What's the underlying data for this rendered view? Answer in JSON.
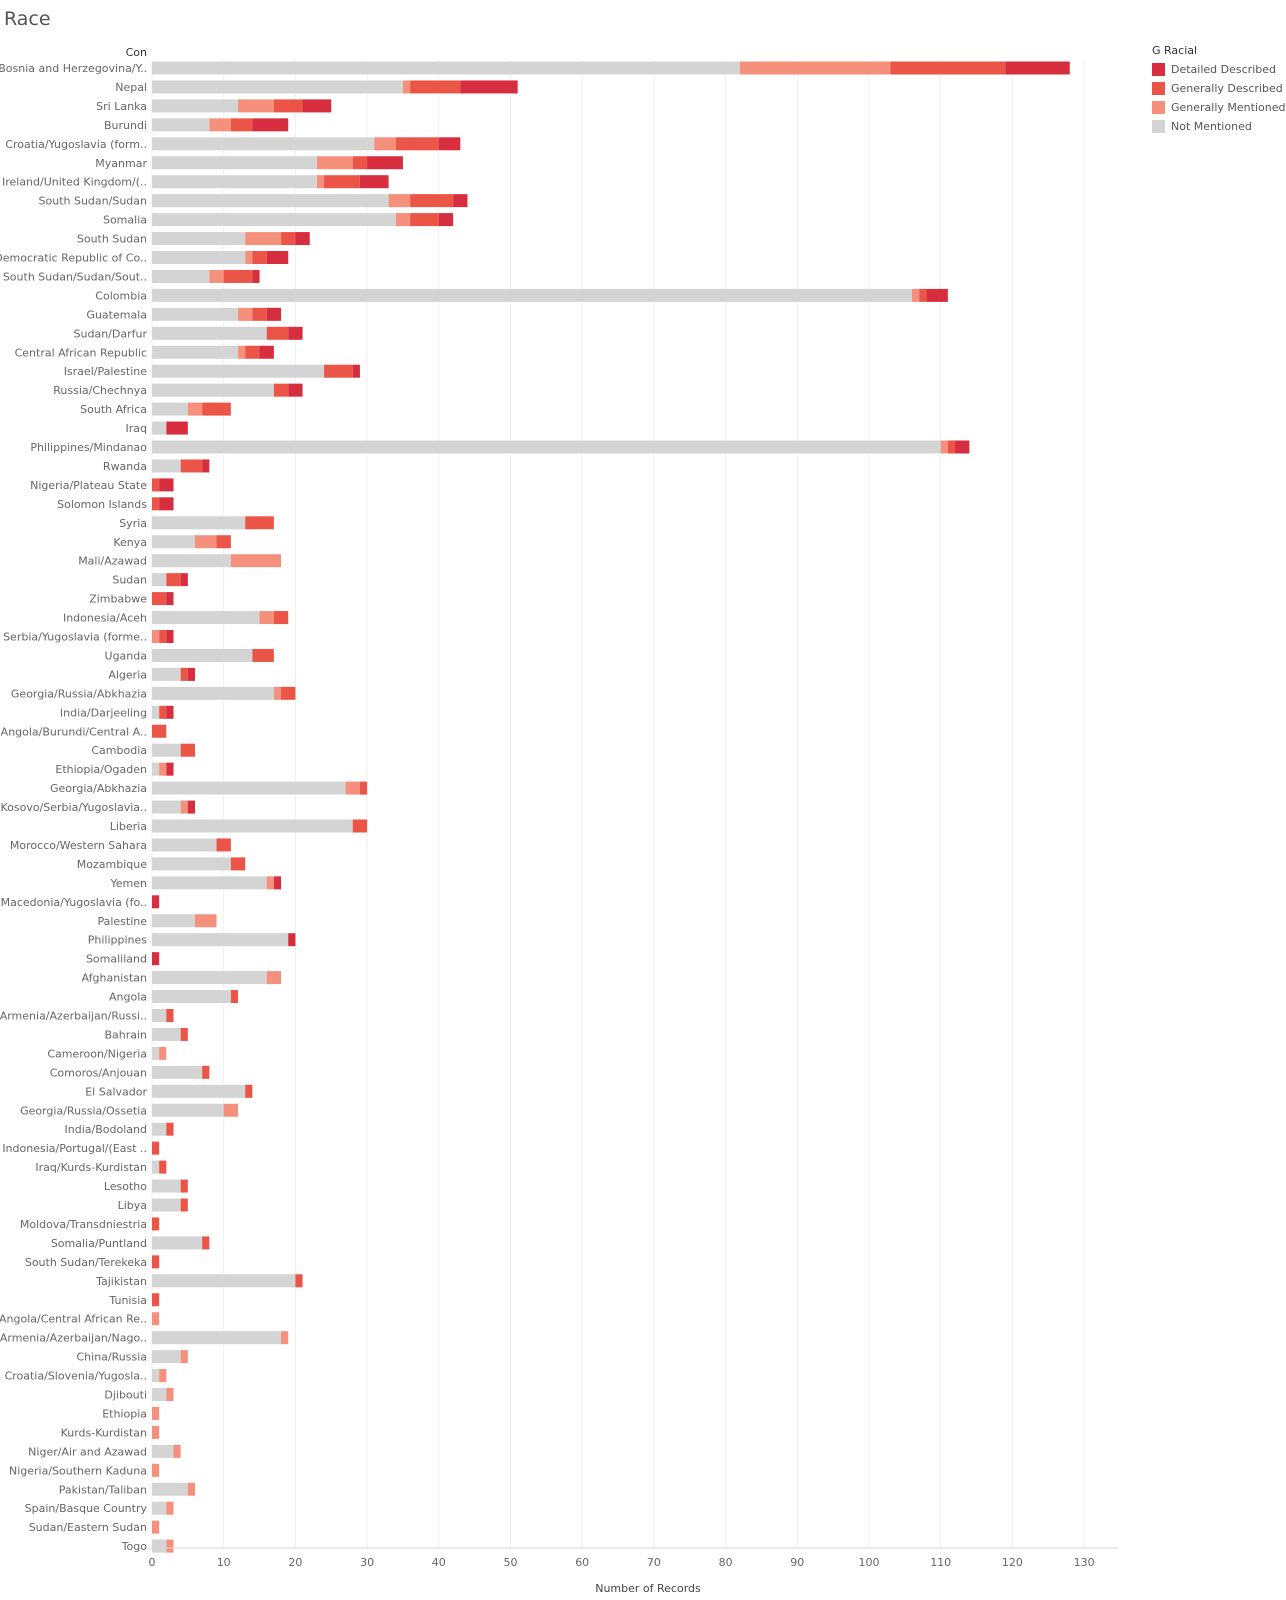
{
  "title": "Race",
  "chart_data": {
    "type": "bar",
    "orientation": "horizontal",
    "stacked": true,
    "column_header": "Con",
    "xlabel": "Number of Records",
    "xlim": [
      0,
      135
    ],
    "xticks": [
      0,
      10,
      20,
      30,
      40,
      50,
      60,
      70,
      80,
      90,
      100,
      110,
      120,
      130
    ],
    "grid": true,
    "legend": {
      "title": "G Racial",
      "placement": "top-right",
      "items": [
        {
          "name": "Detailed Described",
          "color": "#d62d3f"
        },
        {
          "name": "Generally Described",
          "color": "#ea5548"
        },
        {
          "name": "Generally Mentioned",
          "color": "#f4907b"
        },
        {
          "name": "Not Mentioned",
          "color": "#d4d4d4"
        }
      ]
    },
    "stack_order": [
      "Not Mentioned",
      "Generally Mentioned",
      "Generally Described",
      "Detailed Described"
    ],
    "categories": [
      "Bosnia and Herzegovina/Y..",
      "Nepal",
      "Sri Lanka",
      "Burundi",
      "Croatia/Yugoslavia (form..",
      "Myanmar",
      "Ireland/United Kingdom/(..",
      "South Sudan/Sudan",
      "Somalia",
      "South Sudan",
      "Democratic Republic of Co..",
      "South Sudan/Sudan/Sout..",
      "Colombia",
      "Guatemala",
      "Sudan/Darfur",
      "Central African Republic",
      "Israel/Palestine",
      "Russia/Chechnya",
      "South Africa",
      "Iraq",
      "Philippines/Mindanao",
      "Rwanda",
      "Nigeria/Plateau State",
      "Solomon Islands",
      "Syria",
      "Kenya",
      "Mali/Azawad",
      "Sudan",
      "Zimbabwe",
      "Indonesia/Aceh",
      "Serbia/Yugoslavia (forme..",
      "Uganda",
      "Algeria",
      "Georgia/Russia/Abkhazia",
      "India/Darjeeling",
      "Angola/Burundi/Central A..",
      "Cambodia",
      "Ethiopia/Ogaden",
      "Georgia/Abkhazia",
      "Kosovo/Serbia/Yugoslavia..",
      "Liberia",
      "Morocco/Western Sahara",
      "Mozambique",
      "Yemen",
      "Macedonia/Yugoslavia (fo..",
      "Palestine",
      "Philippines",
      "Somaliland",
      "Afghanistan",
      "Angola",
      "Armenia/Azerbaijan/Russi..",
      "Bahrain",
      "Cameroon/Nigeria",
      "Comoros/Anjouan",
      "El Salvador",
      "Georgia/Russia/Ossetia",
      "India/Bodoland",
      "Indonesia/Portugal/(East ..",
      "Iraq/Kurds-Kurdistan",
      "Lesotho",
      "Libya",
      "Moldova/Transdniestria",
      "Somalia/Puntland",
      "South Sudan/Terekeka",
      "Tajikistan",
      "Tunisia",
      "Angola/Central African Re..",
      "Armenia/Azerbaijan/Nago..",
      "China/Russia",
      "Croatia/Slovenia/Yugosla..",
      "Djibouti",
      "Ethiopia",
      "Kurds-Kurdistan",
      "Niger/Air and Azawad",
      "Nigeria/Southern Kaduna",
      "Pakistan/Taliban",
      "Spain/Basque Country",
      "Sudan/Eastern Sudan",
      "Togo"
    ],
    "series": [
      {
        "name": "Not Mentioned",
        "values": [
          82,
          35,
          12,
          8,
          31,
          23,
          23,
          33,
          34,
          13,
          13,
          8,
          106,
          12,
          16,
          12,
          24,
          17,
          5,
          2,
          110,
          4,
          0,
          0,
          13,
          6,
          11,
          2,
          0,
          15,
          0,
          14,
          4,
          17,
          1,
          0,
          4,
          1,
          27,
          4,
          28,
          9,
          11,
          16,
          0,
          6,
          19,
          0,
          16,
          11,
          2,
          4,
          1,
          7,
          13,
          10,
          2,
          0,
          1,
          4,
          4,
          0,
          7,
          0,
          20,
          0,
          0,
          18,
          4,
          1,
          2,
          0,
          0,
          3,
          0,
          5,
          2,
          0,
          2
        ]
      },
      {
        "name": "Generally Mentioned",
        "values": [
          21,
          1,
          5,
          3,
          3,
          5,
          1,
          3,
          2,
          5,
          1,
          2,
          1,
          2,
          0,
          1,
          0,
          0,
          2,
          0,
          1,
          0,
          0,
          0,
          0,
          3,
          7,
          0,
          0,
          2,
          1,
          0,
          0,
          1,
          0,
          0,
          0,
          1,
          2,
          1,
          0,
          0,
          0,
          1,
          0,
          3,
          0,
          0,
          2,
          0,
          0,
          0,
          1,
          0,
          0,
          2,
          0,
          0,
          0,
          0,
          0,
          0,
          0,
          0,
          0,
          0,
          1,
          1,
          1,
          1,
          1,
          1,
          1,
          1,
          1,
          1,
          1,
          1,
          1
        ]
      },
      {
        "name": "Generally Described",
        "values": [
          16,
          7,
          4,
          3,
          6,
          2,
          5,
          6,
          4,
          2,
          2,
          4,
          1,
          2,
          3,
          2,
          4,
          2,
          4,
          0,
          1,
          3,
          1,
          1,
          4,
          2,
          0,
          2,
          2,
          2,
          1,
          3,
          1,
          2,
          1,
          2,
          2,
          0,
          1,
          0,
          2,
          2,
          2,
          0,
          0,
          0,
          0,
          0,
          0,
          1,
          1,
          1,
          0,
          1,
          1,
          0,
          1,
          1,
          1,
          1,
          1,
          1,
          1,
          1,
          1,
          1,
          0,
          0,
          0,
          0,
          0,
          0,
          0,
          0,
          0,
          0,
          0,
          0,
          0
        ]
      },
      {
        "name": "Detailed Described",
        "values": [
          9,
          8,
          4,
          5,
          3,
          5,
          4,
          2,
          2,
          2,
          3,
          1,
          3,
          2,
          2,
          2,
          1,
          2,
          0,
          3,
          2,
          1,
          2,
          2,
          0,
          0,
          0,
          1,
          1,
          0,
          1,
          0,
          1,
          0,
          1,
          0,
          0,
          1,
          0,
          1,
          0,
          0,
          0,
          1,
          1,
          0,
          1,
          1,
          0,
          0,
          0,
          0,
          0,
          0,
          0,
          0,
          0,
          0,
          0,
          0,
          0,
          0,
          0,
          0,
          0,
          0,
          0,
          0,
          0,
          0,
          0,
          0,
          0,
          0,
          0,
          0,
          0,
          0,
          0
        ]
      }
    ]
  }
}
